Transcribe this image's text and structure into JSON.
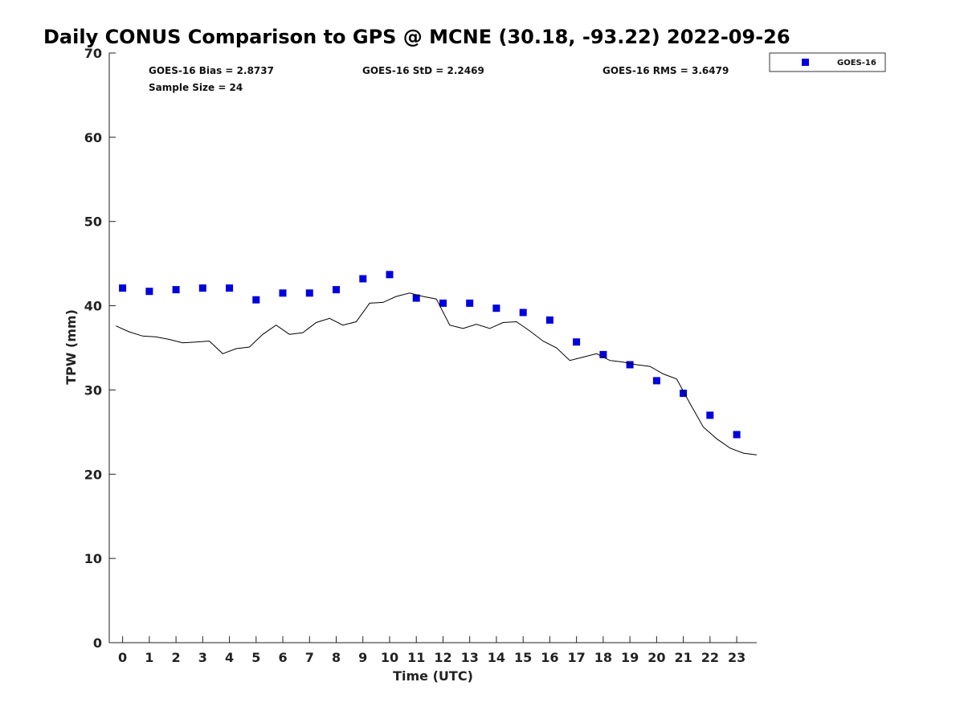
{
  "chart_data": {
    "type": "scatter",
    "title": "Daily CONUS Comparison to GPS @ MCNE (30.18, -93.22) 2022-09-26",
    "xlabel": "Time (UTC)",
    "ylabel": "TPW (mm)",
    "xlim": [
      -0.5,
      23.75
    ],
    "ylim": [
      0,
      70
    ],
    "xticks": [
      0,
      1,
      2,
      3,
      4,
      5,
      6,
      7,
      8,
      9,
      10,
      11,
      12,
      13,
      14,
      15,
      16,
      17,
      18,
      19,
      20,
      21,
      22,
      23
    ],
    "yticks": [
      0,
      10,
      20,
      30,
      40,
      50,
      60,
      70
    ],
    "grid": false,
    "legend_position": "top-right (outside plot area)",
    "stats": {
      "bias": "GOES-16 Bias = 2.8737",
      "sample_size": "Sample Size = 24",
      "std": "GOES-16 StD = 2.2469",
      "rms": "GOES-16 RMS = 3.6479"
    },
    "series": [
      {
        "name": "GOES-16",
        "kind": "markers",
        "color": "#0000dd",
        "marker": "square",
        "x": [
          0,
          1,
          2,
          3,
          4,
          5,
          6,
          7,
          8,
          9,
          10,
          11,
          12,
          13,
          14,
          15,
          16,
          17,
          18,
          19,
          20,
          21,
          22,
          23
        ],
        "values": [
          42.1,
          41.7,
          41.9,
          42.1,
          42.1,
          40.7,
          41.5,
          41.5,
          41.9,
          43.2,
          43.7,
          40.9,
          40.3,
          40.3,
          39.7,
          39.2,
          38.3,
          35.7,
          34.2,
          33.0,
          31.1,
          29.6,
          27.0,
          24.7
        ]
      },
      {
        "kind": "line",
        "color": "#000000",
        "x": [
          -0.25,
          0.25,
          0.75,
          1.25,
          1.75,
          2.25,
          2.75,
          3.25,
          3.75,
          4.25,
          4.75,
          5.25,
          5.75,
          6.25,
          6.75,
          7.25,
          7.75,
          8.25,
          8.75,
          9.25,
          9.75,
          10.25,
          10.75,
          11.25,
          11.75,
          12.25,
          12.75,
          13.25,
          13.75,
          14.25,
          14.75,
          15.25,
          15.75,
          16.25,
          16.75,
          17.25,
          17.75,
          18.25,
          18.75,
          19.25,
          19.75,
          20.25,
          20.75,
          21.25,
          21.75,
          22.25,
          22.75,
          23.25,
          23.75
        ],
        "values": [
          37.6,
          36.9,
          36.4,
          36.3,
          36.0,
          35.6,
          35.7,
          35.8,
          34.3,
          34.9,
          35.1,
          36.6,
          37.7,
          36.6,
          36.8,
          38.0,
          38.5,
          37.7,
          38.1,
          40.3,
          40.4,
          41.1,
          41.5,
          41.1,
          40.8,
          37.7,
          37.3,
          37.8,
          37.3,
          38.0,
          38.1,
          37.0,
          35.8,
          35.0,
          33.5,
          33.9,
          34.3,
          33.5,
          33.3,
          33.0,
          32.8,
          31.9,
          31.3,
          28.4,
          25.6,
          24.2,
          23.1,
          22.5,
          22.3
        ]
      }
    ]
  }
}
